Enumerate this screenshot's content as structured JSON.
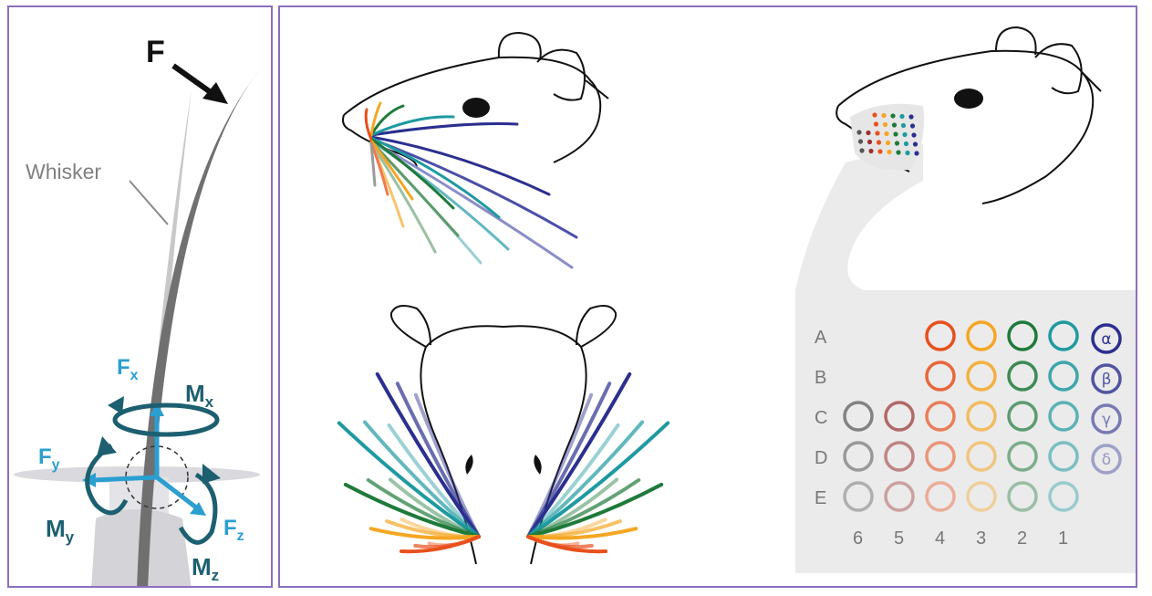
{
  "force_panel": {
    "force_label": "F",
    "whisker_label": "Whisker",
    "fx": {
      "main": "F",
      "sub": "x"
    },
    "fy": {
      "main": "F",
      "sub": "y"
    },
    "fz": {
      "main": "F",
      "sub": "z"
    },
    "mx": {
      "main": "M",
      "sub": "x"
    },
    "my": {
      "main": "M",
      "sub": "y"
    },
    "mz": {
      "main": "M",
      "sub": "z"
    }
  },
  "colors": {
    "border": "#8b6fc0",
    "row_A": "#e8501c",
    "row_B": "#f5a623",
    "col_2": "#1f7a3a",
    "col_1": "#1e9aa0",
    "straddler": "#2b2f8f",
    "col_5": "#9b3030",
    "col_6": "#555555",
    "axis_blue": "#2a9fd0",
    "moment_teal": "#1c5f70"
  },
  "grid": {
    "rows": [
      "A",
      "B",
      "C",
      "D",
      "E"
    ],
    "columns": [
      "6",
      "5",
      "4",
      "3",
      "2",
      "1"
    ],
    "greek": [
      "α",
      "β",
      "γ",
      "δ"
    ]
  }
}
